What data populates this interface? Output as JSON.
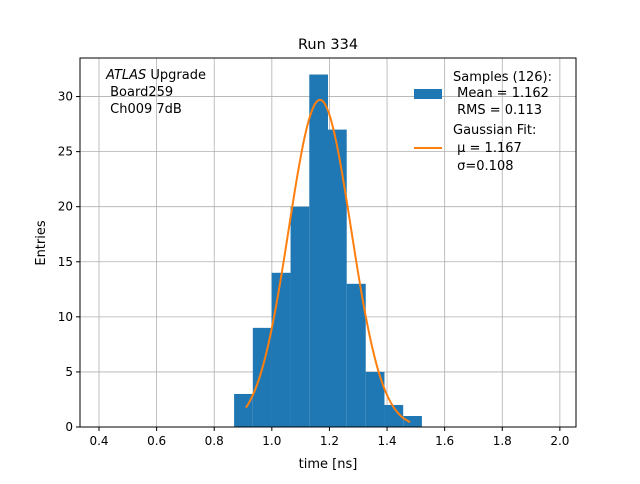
{
  "chart_data": {
    "type": "bar",
    "title": "Run 334",
    "xlabel": "time [ns]",
    "ylabel": "Entries",
    "xlim": [
      0.334,
      2.056
    ],
    "ylim": [
      0,
      33.5
    ],
    "grid": true,
    "xticks": [
      0.4,
      0.6,
      0.8,
      1.0,
      1.2,
      1.4,
      1.6,
      1.8,
      2.0
    ],
    "xtick_labels": [
      "0.4",
      "0.6",
      "0.8",
      "1.0",
      "1.2",
      "1.4",
      "1.6",
      "1.8",
      "2.0"
    ],
    "yticks": [
      0,
      5,
      10,
      15,
      20,
      25,
      30
    ],
    "ytick_labels": [
      "0",
      "5",
      "10",
      "15",
      "20",
      "25",
      "30"
    ],
    "histogram": {
      "bin_edges": [
        0.869,
        0.934,
        0.999,
        1.065,
        1.13,
        1.195,
        1.26,
        1.326,
        1.391,
        1.456,
        1.521
      ],
      "counts": [
        3,
        9,
        14,
        20,
        32,
        27,
        13,
        5,
        2,
        1
      ],
      "color": "#1f77b4"
    },
    "fit": {
      "type": "gaussian",
      "mu": 1.167,
      "sigma": 0.108,
      "amplitude": 29.7,
      "x_range": [
        0.91,
        1.48
      ],
      "color": "#ff7f0e"
    },
    "annotation": {
      "lines": [
        "ATLAS",
        " Upgrade",
        " Board259",
        " Ch009 7dB"
      ]
    },
    "legend": {
      "placement": "top-right",
      "entries": [
        {
          "lines": [
            "Samples (126):",
            " Mean = 1.162",
            " RMS = 0.113"
          ]
        },
        {
          "lines": [
            "Gaussian Fit:",
            " μ = 1.167",
            " σ=0.108"
          ]
        }
      ]
    }
  }
}
